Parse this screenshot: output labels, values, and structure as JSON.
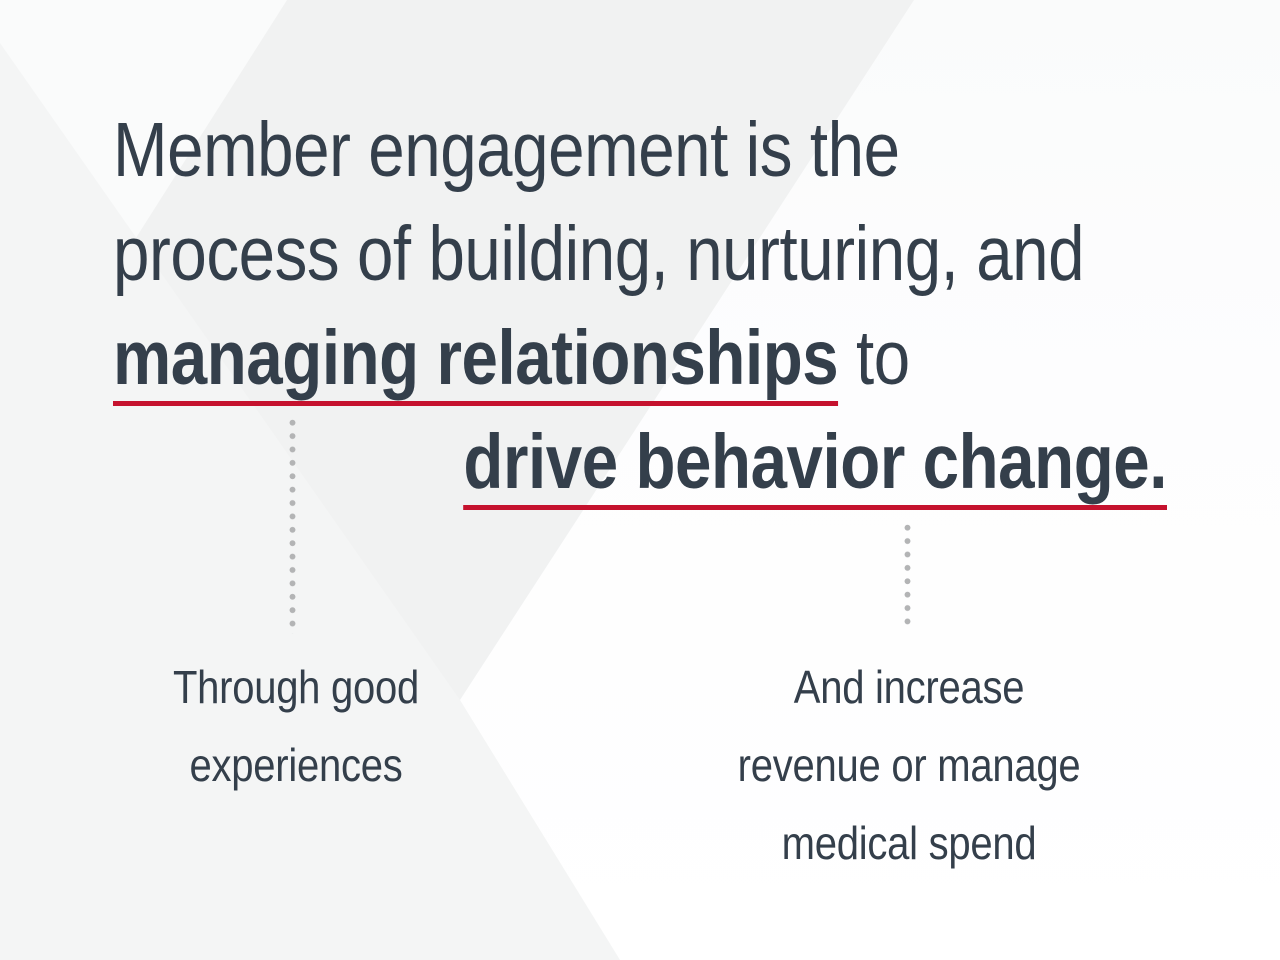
{
  "slide": {
    "heading": {
      "line1": "Member engagement is the",
      "line2": "process of building, nurturing, and",
      "line3_emphasis": "managing relationships",
      "line3_rest": " to",
      "line4_emphasis": "drive behavior change."
    },
    "callout_left": {
      "line1": "Through good",
      "line2": "experiences"
    },
    "callout_right": {
      "line1": "And increase",
      "line2": "revenue or manage",
      "line3": "medical spend"
    },
    "colors": {
      "text": "#343f4b",
      "accent_underline": "#c5122e",
      "connector_dot": "#b3b4b5",
      "background_base": "#f1f2f2",
      "background_light": "#ffffff"
    }
  }
}
